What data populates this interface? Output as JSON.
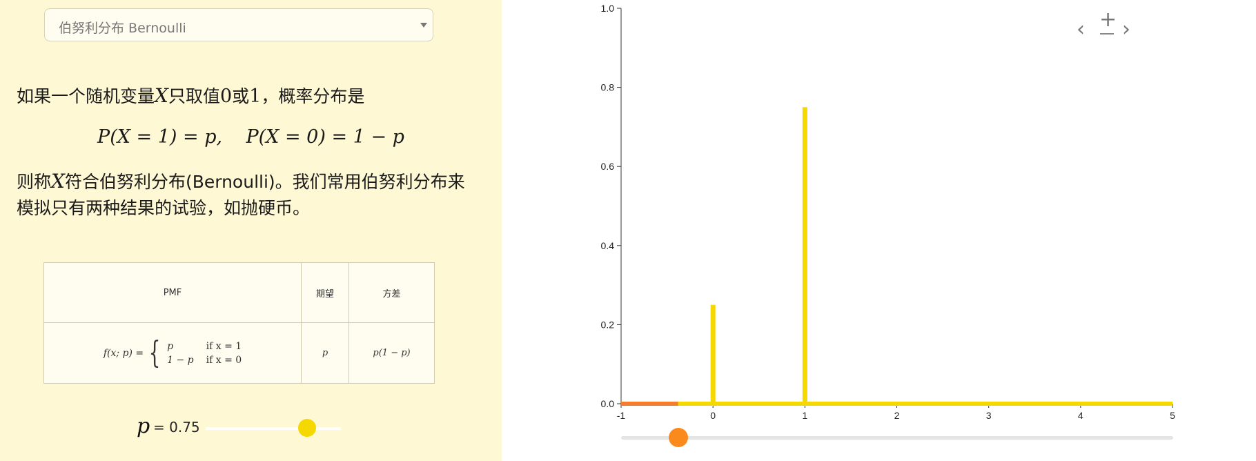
{
  "dropdown": {
    "selected": "伯努利分布 Bernoulli"
  },
  "intro": {
    "p1_a": "如果一个随机变量",
    "var": "X",
    "p1_b": "只取值",
    "zero": "0",
    "p1_c": "或",
    "one": "1",
    "p1_d": "，概率分布是",
    "p2_a": "则称",
    "p2_b": "符合伯努利分布(Bernoulli)。我们常用伯努利分布来模拟只有两种结果的试验，如抛硬币。"
  },
  "equation": {
    "part1": "P(X = 1) = p,",
    "part2": "P(X = 0) = 1 − p"
  },
  "table": {
    "headers": [
      "PMF",
      "期望",
      "方差"
    ],
    "pmf_lhs": "f(x; p) =",
    "case1_value": "p",
    "case1_cond": "if x = 1",
    "case2_value": "1 − p",
    "case2_cond": "if x = 0",
    "mean": "p",
    "variance": "p(1 − p)"
  },
  "parameter": {
    "symbol": "p",
    "value_text": "= 0.75",
    "value": 0.75,
    "min": 0,
    "max": 1
  },
  "x_slider": {
    "value": -0.38,
    "min": -1,
    "max": 5
  },
  "chart_data": {
    "type": "bar",
    "x": [
      0,
      1
    ],
    "values": [
      0.25,
      0.75
    ],
    "xlim": [
      -1,
      5
    ],
    "ylim": [
      0,
      1.0
    ],
    "xticks": [
      "-1",
      "0",
      "1",
      "2",
      "3",
      "4",
      "5"
    ],
    "yticks": [
      "0.0",
      "0.2",
      "0.4",
      "0.6",
      "0.8",
      "1.0"
    ],
    "grid": false,
    "title": "",
    "xlabel": "",
    "ylabel": "",
    "colors": {
      "bar": "#f5d800",
      "baseline": "#f5d800",
      "cdf_highlight": "#f47e2b"
    }
  }
}
